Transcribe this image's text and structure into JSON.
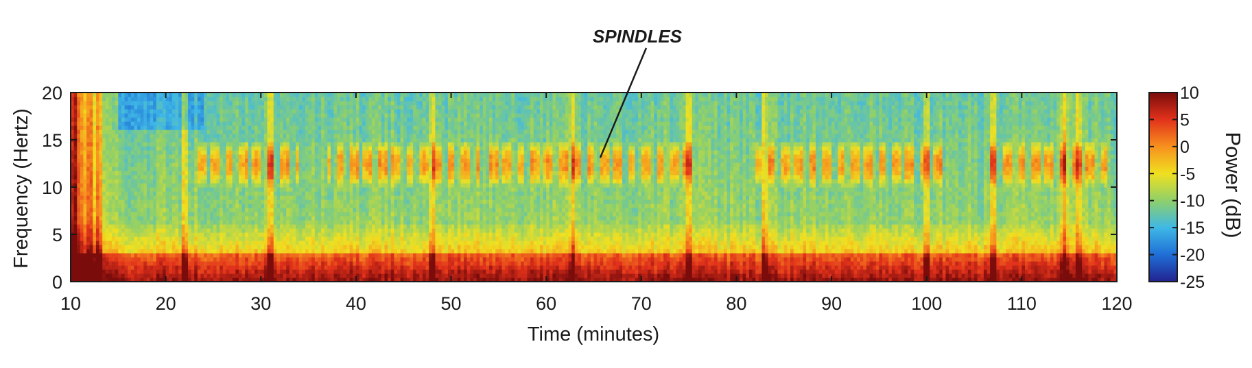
{
  "chart_data": {
    "type": "heatmap",
    "title": "",
    "xlabel": "Time (minutes)",
    "ylabel": "Frequency (Hertz)",
    "xlim": [
      10,
      120
    ],
    "ylim": [
      0,
      20
    ],
    "x_ticks": [
      "10",
      "20",
      "30",
      "40",
      "50",
      "60",
      "70",
      "80",
      "90",
      "100",
      "110",
      "120"
    ],
    "y_ticks": [
      "0",
      "5",
      "10",
      "15",
      "20"
    ],
    "colorbar": {
      "label": "Power (dB)",
      "range": [
        -25,
        10
      ],
      "ticks": [
        "10",
        "5",
        "0",
        "-5",
        "-10",
        "-15",
        "-20",
        "-25"
      ],
      "colormap": "jet",
      "colors": [
        "#22228f",
        "#1f6fd6",
        "#3fb8e6",
        "#8fd06a",
        "#f0e020",
        "#f7901e",
        "#e2321b",
        "#7a0c0c"
      ]
    },
    "annotation": {
      "text": "SPINDLES",
      "target": {
        "x": 65.5,
        "y": 13
      }
    },
    "features": {
      "spindle_band_hz": [
        10,
        15
      ],
      "spindle_episodes_min": [
        [
          23,
          34
        ],
        [
          37,
          53
        ],
        [
          54,
          76
        ],
        [
          82,
          102
        ],
        [
          106,
          119
        ]
      ],
      "low_frequency_band_hz": [
        0,
        3
      ],
      "artifacts_min": [
        10.5,
        12,
        13,
        22,
        31,
        48,
        62.8,
        75,
        83,
        100,
        107,
        114.5,
        116
      ]
    }
  }
}
